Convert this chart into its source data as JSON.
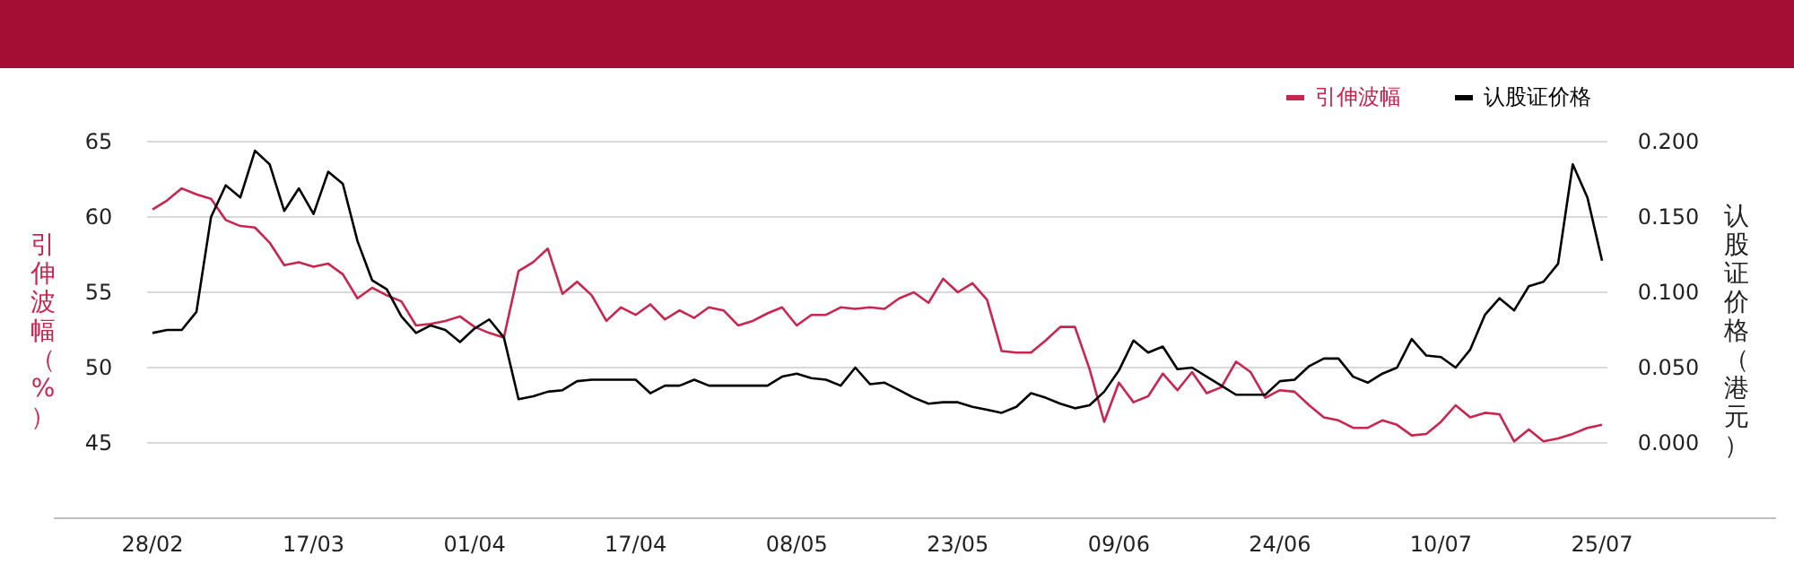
{
  "chart_data": {
    "type": "line",
    "ylabel": "引伸波幅（%）",
    "y2label": "认股证价格（港元）",
    "categories": [
      "28/02",
      null,
      null,
      null,
      null,
      null,
      null,
      null,
      null,
      null,
      null,
      "17/03",
      null,
      null,
      null,
      null,
      null,
      null,
      null,
      null,
      null,
      null,
      "01/04",
      null,
      null,
      null,
      null,
      null,
      null,
      null,
      null,
      null,
      null,
      "17/04",
      null,
      null,
      null,
      null,
      null,
      null,
      null,
      null,
      null,
      null,
      "08/05",
      null,
      null,
      null,
      null,
      null,
      null,
      null,
      null,
      null,
      null,
      "23/05",
      null,
      null,
      null,
      null,
      null,
      null,
      null,
      null,
      null,
      null,
      "09/06",
      null,
      null,
      null,
      null,
      null,
      null,
      null,
      null,
      null,
      null,
      "24/06",
      null,
      null,
      null,
      null,
      null,
      null,
      null,
      null,
      null,
      null,
      "10/07",
      null,
      null,
      null,
      null,
      null,
      null,
      null,
      null,
      null,
      null,
      "25/07"
    ],
    "series": [
      {
        "name": "引伸波幅",
        "color": "#c8254f",
        "values": [
          60.5,
          61.1,
          61.9,
          61.5,
          61.2,
          59.8,
          59.4,
          59.3,
          58.3,
          56.8,
          57.0,
          56.7,
          56.9,
          56.2,
          54.6,
          55.3,
          54.8,
          54.4,
          52.8,
          52.9,
          53.1,
          53.4,
          52.7,
          52.3,
          52.0,
          56.4,
          57.0,
          57.9,
          54.9,
          55.7,
          54.8,
          53.1,
          54.0,
          53.5,
          54.2,
          53.2,
          53.8,
          53.3,
          54.0,
          53.8,
          52.8,
          53.1,
          53.6,
          54.0,
          52.8,
          53.5,
          53.5,
          54.0,
          53.9,
          54.0,
          53.9,
          54.6,
          55.0,
          54.3,
          55.9,
          55.0,
          55.6,
          54.5,
          51.1,
          51.0,
          51.0,
          51.8,
          52.7,
          52.7,
          49.9,
          46.4,
          49.0,
          47.7,
          48.1,
          49.6,
          48.5,
          49.7,
          48.3,
          48.7,
          50.4,
          49.7,
          48.0,
          48.5,
          48.4,
          47.5,
          46.7,
          46.5,
          46.0,
          46.0,
          46.5,
          46.2,
          45.5,
          45.6,
          46.4,
          47.5,
          46.7,
          47.0,
          46.9,
          45.1,
          45.9,
          45.1,
          45.3,
          45.6,
          46.0,
          46.2
        ]
      },
      {
        "name": "认股证价格",
        "color": "#000000",
        "axis": "y2",
        "values": [
          0.073,
          0.075,
          0.075,
          0.087,
          0.15,
          0.171,
          0.163,
          0.194,
          0.185,
          0.154,
          0.169,
          0.152,
          0.18,
          0.172,
          0.134,
          0.108,
          0.102,
          0.084,
          0.073,
          0.078,
          0.075,
          0.067,
          0.076,
          0.082,
          0.07,
          0.029,
          0.031,
          0.034,
          0.035,
          0.041,
          0.042,
          0.042,
          0.042,
          0.042,
          0.033,
          0.038,
          0.038,
          0.042,
          0.038,
          0.038,
          0.038,
          0.038,
          0.038,
          0.044,
          0.046,
          0.043,
          0.042,
          0.038,
          0.05,
          0.039,
          0.04,
          0.035,
          0.03,
          0.026,
          0.027,
          0.027,
          0.024,
          0.022,
          0.02,
          0.024,
          0.033,
          0.03,
          0.026,
          0.023,
          0.025,
          0.034,
          0.048,
          0.068,
          0.06,
          0.064,
          0.049,
          0.05,
          0.044,
          0.038,
          0.032,
          0.032,
          0.032,
          0.041,
          0.042,
          0.051,
          0.056,
          0.056,
          0.044,
          0.04,
          0.046,
          0.05,
          0.069,
          0.058,
          0.057,
          0.05,
          0.062,
          0.085,
          0.096,
          0.088,
          0.104,
          0.107,
          0.119,
          0.185,
          0.163,
          0.121
        ]
      }
    ],
    "ylim": [
      40,
      65
    ],
    "yticks": [
      45,
      50,
      55,
      60,
      65
    ],
    "y2lim": [
      -0.05,
      0.2
    ],
    "y2ticks": [
      {
        "value": 0,
        "label": "0.000"
      },
      {
        "value": 0.05,
        "label": "0.050"
      },
      {
        "value": 0.1,
        "label": "0.100"
      },
      {
        "value": 0.15,
        "label": "0.150"
      },
      {
        "value": 0.2,
        "label": "0.200"
      }
    ],
    "grid": "y",
    "legend": "top right",
    "marker": "none",
    "line_style": "solid"
  }
}
